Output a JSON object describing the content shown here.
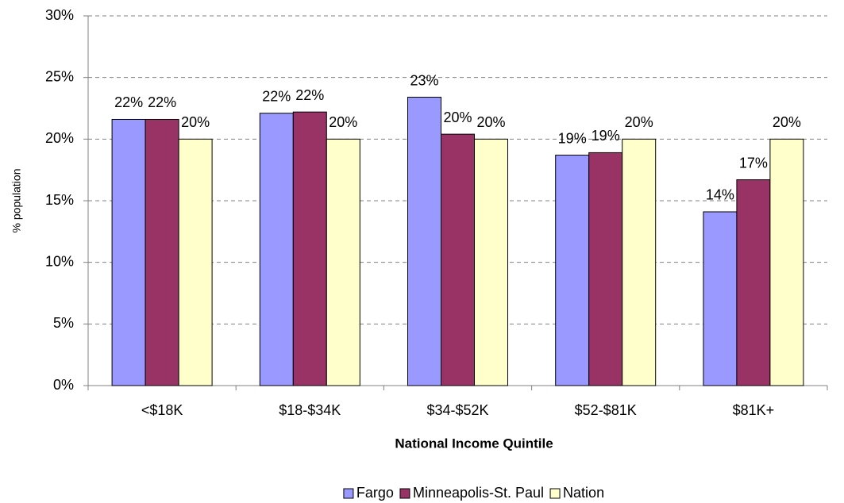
{
  "chart_data": {
    "type": "bar",
    "x_label": "National Income Quintile",
    "y_label": "% population",
    "categories": [
      "<$18K",
      "$18-$34K",
      "$34-$52K",
      "$52-$81K",
      "$81K+"
    ],
    "series": [
      {
        "name": "Fargo",
        "color": "#9999ff",
        "values": [
          21.6,
          22.1,
          23.4,
          18.7,
          14.1
        ],
        "value_labels": [
          "22%",
          "22%",
          "23%",
          "19%",
          "14%"
        ]
      },
      {
        "name": "Minneapolis-St. Paul",
        "color": "#993366",
        "values": [
          21.6,
          22.2,
          20.4,
          18.9,
          16.7
        ],
        "value_labels": [
          "22%",
          "22%",
          "20%",
          "19%",
          "17%"
        ]
      },
      {
        "name": "Nation",
        "color": "#ffffcc",
        "values": [
          20,
          20,
          20,
          20,
          20
        ],
        "value_labels": [
          "20%",
          "20%",
          "20%",
          "20%",
          "20%"
        ]
      }
    ],
    "ylim": [
      0,
      30
    ],
    "yticks": [
      {
        "value": 0,
        "label": "0%"
      },
      {
        "value": 5,
        "label": "5%"
      },
      {
        "value": 10,
        "label": "10%"
      },
      {
        "value": 15,
        "label": "15%"
      },
      {
        "value": 20,
        "label": "20%"
      },
      {
        "value": 25,
        "label": "25%"
      },
      {
        "value": 30,
        "label": "30%"
      }
    ],
    "grid": true,
    "legend": "bottom"
  }
}
